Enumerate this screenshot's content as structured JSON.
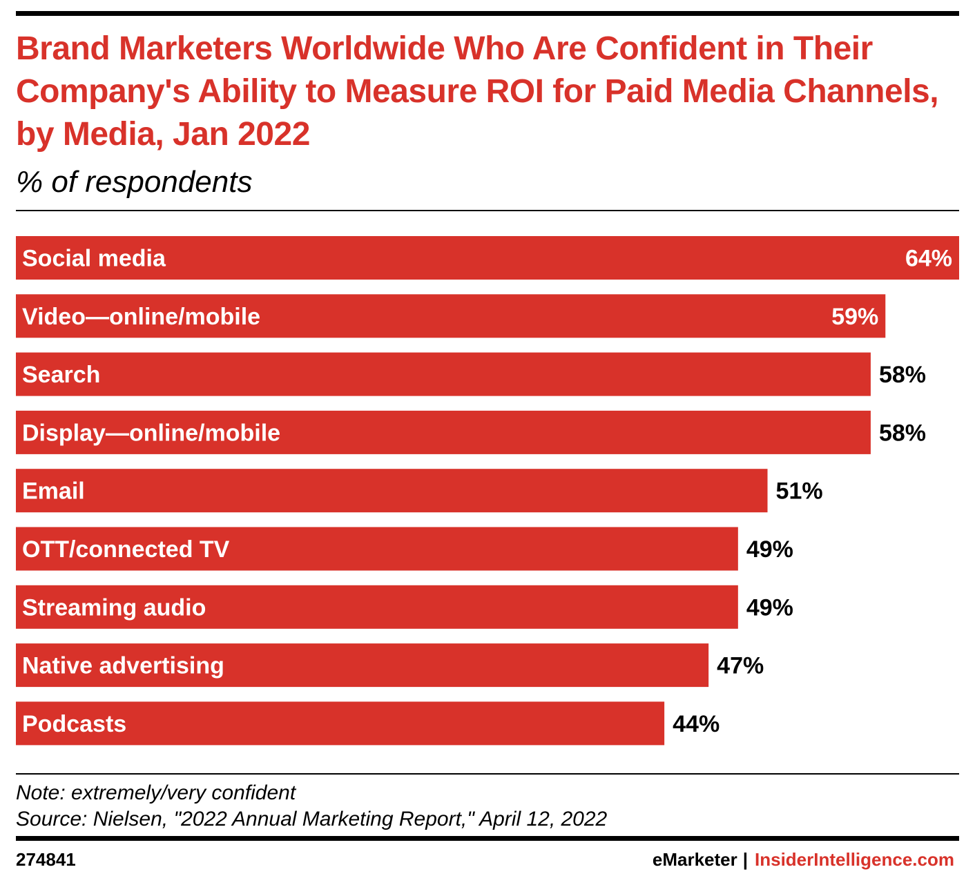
{
  "chart_data": {
    "type": "bar",
    "orientation": "horizontal",
    "title": "Brand Marketers Worldwide Who Are Confident in Their Company's Ability to Measure ROI for Paid Media Channels, by Media, Jan 2022",
    "subtitle": "% of respondents",
    "categories": [
      "Social media",
      "Video—online/mobile",
      "Search",
      "Display—online/mobile",
      "Email",
      "OTT/connected TV",
      "Streaming audio",
      "Native advertising",
      "Podcasts"
    ],
    "values": [
      64,
      59,
      58,
      58,
      51,
      49,
      49,
      47,
      44
    ],
    "value_labels": [
      "64%",
      "59%",
      "58%",
      "58%",
      "51%",
      "49%",
      "49%",
      "47%",
      "44%"
    ],
    "xlim": [
      0,
      64
    ],
    "grid": false,
    "bar_color": "#d8322a"
  },
  "note": "Note: extremely/very confident",
  "source": "Source: Nielsen, \"2022 Annual Marketing Report,\" April 12, 2022",
  "footer": {
    "chart_id": "274841",
    "brand_left": "eMarketer",
    "separator": "|",
    "brand_right": "InsiderIntelligence.com"
  },
  "colors": {
    "accent": "#d8322a",
    "text": "#000000",
    "background": "#ffffff"
  }
}
